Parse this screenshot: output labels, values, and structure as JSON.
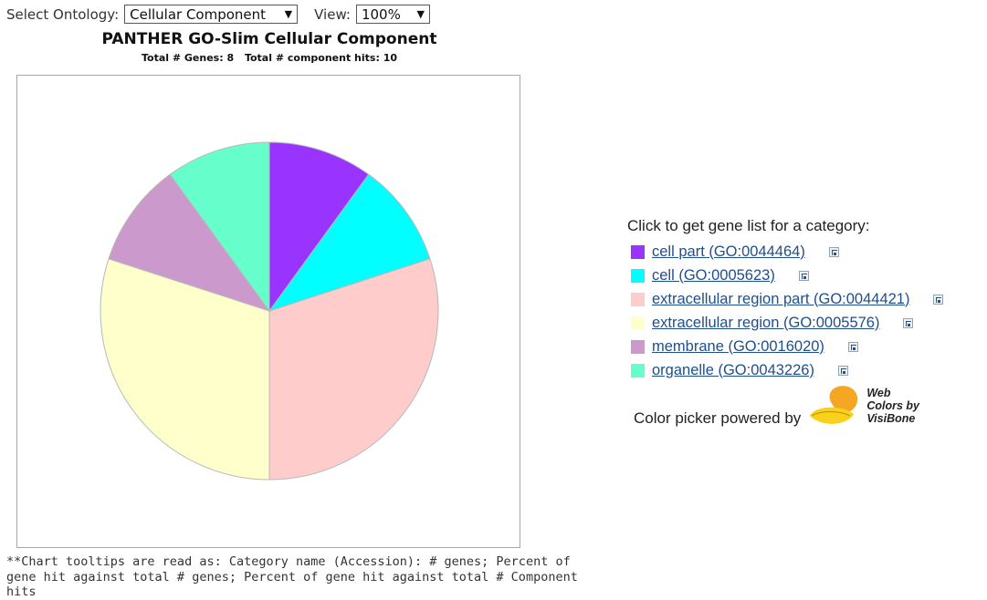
{
  "controls": {
    "ontology_label": "Select Ontology:",
    "ontology_value": "Cellular Component",
    "view_label": "View:",
    "view_value": "100%"
  },
  "chart_data": {
    "type": "pie",
    "title": "PANTHER GO-Slim Cellular Component",
    "subtitle_genes": "Total # Genes: 8",
    "subtitle_hits": "Total # component hits: 10",
    "slices": [
      {
        "label": "cell part (GO:0044464)",
        "value": 1,
        "color": "#9933ff"
      },
      {
        "label": "cell (GO:0005623)",
        "value": 1,
        "color": "#00ffff"
      },
      {
        "label": "extracellular region part (GO:0044421)",
        "value": 3,
        "color": "#ffcccc"
      },
      {
        "label": "extracellular region (GO:0005576)",
        "value": 3,
        "color": "#ffffcc"
      },
      {
        "label": "membrane (GO:0016020)",
        "value": 1,
        "color": "#cc99cc"
      },
      {
        "label": "organelle (GO:0043226)",
        "value": 1,
        "color": "#66ffcc"
      }
    ]
  },
  "footnote": "**Chart tooltips are read as: Category name (Accession): # genes; Percent of gene hit against total # genes; Percent of gene hit against total # Component hits",
  "legend": {
    "title": "Click to get gene list for a category:",
    "items": [
      {
        "label": "cell part (GO:0044464)",
        "color": "#9933ff",
        "icon": "tree-icon"
      },
      {
        "label": "cell (GO:0005623)",
        "color": "#00ffff",
        "icon": "tree-icon"
      },
      {
        "label": "extracellular region part (GO:0044421)",
        "color": "#ffcccc",
        "icon": "tree-icon"
      },
      {
        "label": "extracellular region (GO:0005576)",
        "color": "#ffffcc",
        "icon": "tree-icon"
      },
      {
        "label": "membrane (GO:0016020)",
        "color": "#cc99cc",
        "icon": "tree-icon"
      },
      {
        "label": "organelle (GO:0043226)",
        "color": "#66ffcc",
        "icon": "tree-icon"
      }
    ]
  },
  "color_picker": {
    "text": "Color picker powered by",
    "logo_line1": "Web",
    "logo_line2": "Colors by",
    "logo_line3": "VisiBone"
  }
}
